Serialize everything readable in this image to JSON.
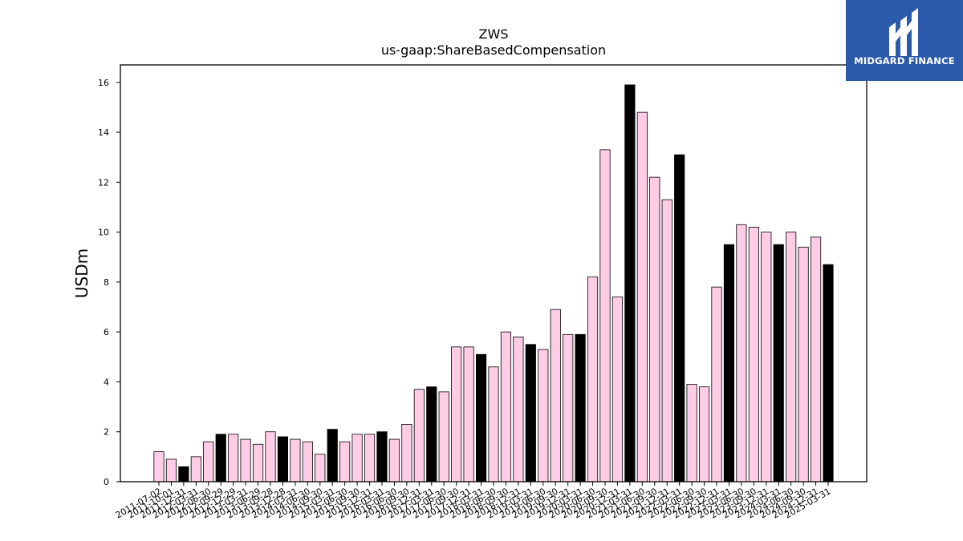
{
  "chart_data": {
    "type": "bar",
    "title": "ZWS",
    "subtitle": "us-gaap:ShareBasedCompensation",
    "ylabel": "USDm",
    "xlabel": "",
    "ylim": [
      0,
      16.7
    ],
    "yticks": [
      0,
      2,
      4,
      6,
      8,
      10,
      12,
      14,
      16
    ],
    "grid": false,
    "categories": [
      "2011-07-02",
      "2011-10-01",
      "2011-12-31",
      "2012-03-31",
      "2012-06-30",
      "2012-09-29",
      "2012-12-29",
      "2013-03-31",
      "2013-06-29",
      "2013-09-28",
      "2013-12-28",
      "2014-03-31",
      "2014-06-30",
      "2014-09-30",
      "2015-03-31",
      "2015-06-30",
      "2015-09-30",
      "2015-12-31",
      "2016-03-31",
      "2016-06-30",
      "2016-09-30",
      "2016-12-31",
      "2017-03-31",
      "2017-06-30",
      "2017-09-30",
      "2017-12-31",
      "2018-03-31",
      "2018-06-30",
      "2018-09-30",
      "2018-12-31",
      "2019-03-31",
      "2019-06-30",
      "2019-09-30",
      "2019-12-31",
      "2020-03-31",
      "2020-06-30",
      "2020-09-30",
      "2020-12-31",
      "2021-03-31",
      "2021-06-30",
      "2021-09-30",
      "2021-12-31",
      "2022-03-31",
      "2022-06-30",
      "2022-09-30",
      "2022-12-31",
      "2023-03-31",
      "2023-06-30",
      "2023-09-30",
      "2023-12-31",
      "2024-03-31",
      "2024-06-30",
      "2024-09-30",
      "2024-12-31",
      "2025-03-31"
    ],
    "values": [
      1.2,
      0.9,
      0.6,
      1.0,
      1.6,
      1.9,
      1.9,
      1.7,
      1.5,
      2.0,
      1.8,
      1.7,
      1.6,
      1.1,
      2.1,
      1.6,
      1.9,
      1.9,
      2.0,
      1.7,
      2.3,
      3.7,
      3.8,
      3.6,
      5.4,
      5.4,
      5.1,
      4.6,
      6.0,
      5.8,
      5.5,
      5.3,
      6.9,
      5.9,
      5.9,
      8.2,
      13.3,
      7.4,
      15.9,
      14.8,
      12.2,
      11.3,
      13.1,
      3.9,
      3.8,
      7.8,
      9.5,
      10.3,
      10.2,
      10.0,
      9.5,
      10.0,
      9.4,
      9.8,
      8.7
    ],
    "highlight": [
      2,
      5,
      10,
      14,
      18,
      22,
      26,
      30,
      34,
      38,
      42,
      46,
      50,
      54
    ],
    "colors": {
      "bar": "#ffcce6",
      "highlight": "#000000",
      "edge": "#000000"
    }
  },
  "logo": {
    "text": "MIDGARD FINANCE",
    "color": "#2b5aaa"
  }
}
